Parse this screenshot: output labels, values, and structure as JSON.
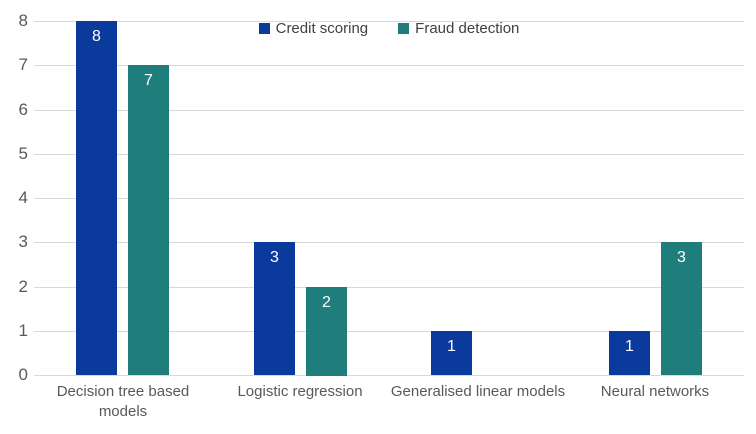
{
  "chart_data": {
    "type": "bar",
    "title": "",
    "xlabel": "",
    "ylabel": "",
    "categories": [
      "Decision tree based models",
      "Logistic regression",
      "Generalised linear models",
      "Neural networks"
    ],
    "series": [
      {
        "name": "Credit scoring",
        "color": "#0a3b9c",
        "values": [
          8,
          3,
          1,
          1
        ]
      },
      {
        "name": "Fraud detection",
        "color": "#1f7e7c",
        "values": [
          7,
          2,
          null,
          3
        ]
      }
    ],
    "ylim": [
      0,
      8
    ],
    "yticks": [
      0,
      1,
      2,
      3,
      4,
      5,
      6,
      7,
      8
    ],
    "grid": "horizontal",
    "gridline_color": "#d9d9d9",
    "axis_text_color": "#595959",
    "legend_position": "top-center",
    "value_labels": "inside-top-white"
  }
}
